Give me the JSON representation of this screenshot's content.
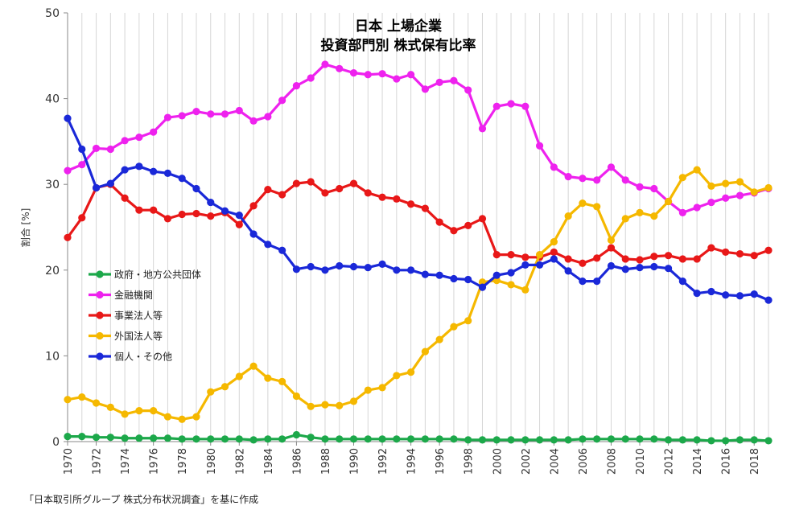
{
  "source_note": "「日本取引所グループ 株式分布状況調査」を基に作成",
  "chart_data": {
    "type": "line",
    "title_lines": [
      "日本 上場企業",
      "投資部門別 株式保有比率"
    ],
    "ylabel": "割合 [%]",
    "xlabel": "",
    "ylim": [
      0,
      50
    ],
    "yticks": [
      0,
      10,
      20,
      30,
      40,
      50
    ],
    "xlim": [
      1970,
      2019
    ],
    "xticks": [
      1970,
      1972,
      1974,
      1976,
      1978,
      1980,
      1982,
      1984,
      1986,
      1988,
      1990,
      1992,
      1994,
      1996,
      1998,
      2000,
      2002,
      2004,
      2006,
      2008,
      2010,
      2012,
      2014,
      2016,
      2018
    ],
    "grid": "vertical",
    "legend_position": "left-middle",
    "x": [
      1970,
      1971,
      1972,
      1973,
      1974,
      1975,
      1976,
      1977,
      1978,
      1979,
      1980,
      1981,
      1982,
      1983,
      1984,
      1985,
      1986,
      1987,
      1988,
      1989,
      1990,
      1991,
      1992,
      1993,
      1994,
      1995,
      1996,
      1997,
      1998,
      1999,
      2000,
      2001,
      2002,
      2003,
      2004,
      2005,
      2006,
      2007,
      2008,
      2009,
      2010,
      2011,
      2012,
      2013,
      2014,
      2015,
      2016,
      2017,
      2018,
      2019
    ],
    "series": [
      {
        "name": "政府・地方公共団体",
        "color": "#1ca84a",
        "values": [
          0.6,
          0.6,
          0.5,
          0.5,
          0.4,
          0.4,
          0.4,
          0.4,
          0.3,
          0.3,
          0.3,
          0.3,
          0.3,
          0.2,
          0.3,
          0.3,
          0.8,
          0.5,
          0.3,
          0.3,
          0.3,
          0.3,
          0.3,
          0.3,
          0.3,
          0.3,
          0.3,
          0.3,
          0.2,
          0.2,
          0.2,
          0.2,
          0.2,
          0.2,
          0.2,
          0.2,
          0.3,
          0.3,
          0.3,
          0.3,
          0.3,
          0.3,
          0.2,
          0.2,
          0.2,
          0.1,
          0.1,
          0.2,
          0.2,
          0.1
        ]
      },
      {
        "name": "金融機関",
        "color": "#ee22ee",
        "values": [
          31.6,
          32.3,
          34.2,
          34.1,
          35.1,
          35.5,
          36.1,
          37.8,
          38.0,
          38.5,
          38.2,
          38.2,
          38.6,
          37.4,
          37.9,
          39.8,
          41.5,
          42.4,
          44.0,
          43.5,
          43.0,
          42.8,
          42.9,
          42.3,
          42.8,
          41.1,
          41.9,
          42.1,
          41.0,
          36.5,
          39.1,
          39.4,
          39.1,
          34.5,
          32.0,
          30.9,
          30.7,
          30.5,
          32.0,
          30.5,
          29.7,
          29.5,
          28.0,
          26.7,
          27.3,
          27.9,
          28.4,
          28.7,
          29.0,
          29.5
        ]
      },
      {
        "name": "事業法人等",
        "color": "#e81818",
        "values": [
          23.8,
          26.1,
          29.6,
          30.0,
          28.4,
          27.0,
          27.0,
          26.0,
          26.5,
          26.6,
          26.3,
          26.7,
          25.3,
          27.5,
          29.4,
          28.8,
          30.1,
          30.3,
          29.0,
          29.5,
          30.1,
          29.0,
          28.5,
          28.3,
          27.7,
          27.2,
          25.6,
          24.6,
          25.2,
          26.0,
          21.8,
          21.8,
          21.5,
          21.5,
          22.1,
          21.3,
          20.8,
          21.4,
          22.6,
          21.3,
          21.2,
          21.6,
          21.7,
          21.3,
          21.3,
          22.6,
          22.1,
          21.9,
          21.7,
          22.3
        ]
      },
      {
        "name": "外国法人等",
        "color": "#f5b800",
        "values": [
          4.9,
          5.2,
          4.5,
          4.0,
          3.2,
          3.6,
          3.6,
          2.9,
          2.6,
          2.9,
          5.8,
          6.4,
          7.6,
          8.8,
          7.4,
          7.0,
          5.3,
          4.1,
          4.3,
          4.2,
          4.7,
          6.0,
          6.3,
          7.7,
          8.1,
          10.5,
          11.9,
          13.4,
          14.1,
          18.6,
          18.8,
          18.3,
          17.7,
          21.8,
          23.3,
          26.3,
          27.8,
          27.4,
          23.5,
          26.0,
          26.7,
          26.3,
          28.0,
          30.8,
          31.7,
          29.8,
          30.1,
          30.3,
          29.1,
          29.6
        ]
      },
      {
        "name": "個人・その他",
        "color": "#1a28d8",
        "values": [
          37.7,
          34.1,
          29.6,
          30.1,
          31.7,
          32.1,
          31.5,
          31.3,
          30.7,
          29.5,
          27.9,
          26.9,
          26.4,
          24.2,
          23.0,
          22.3,
          20.1,
          20.4,
          20.0,
          20.5,
          20.4,
          20.3,
          20.7,
          20.0,
          20.0,
          19.5,
          19.4,
          19.0,
          18.9,
          18.0,
          19.4,
          19.7,
          20.6,
          20.6,
          21.3,
          19.9,
          18.7,
          18.7,
          20.5,
          20.1,
          20.3,
          20.4,
          20.2,
          18.7,
          17.3,
          17.5,
          17.1,
          17.0,
          17.2,
          16.5
        ]
      }
    ]
  }
}
